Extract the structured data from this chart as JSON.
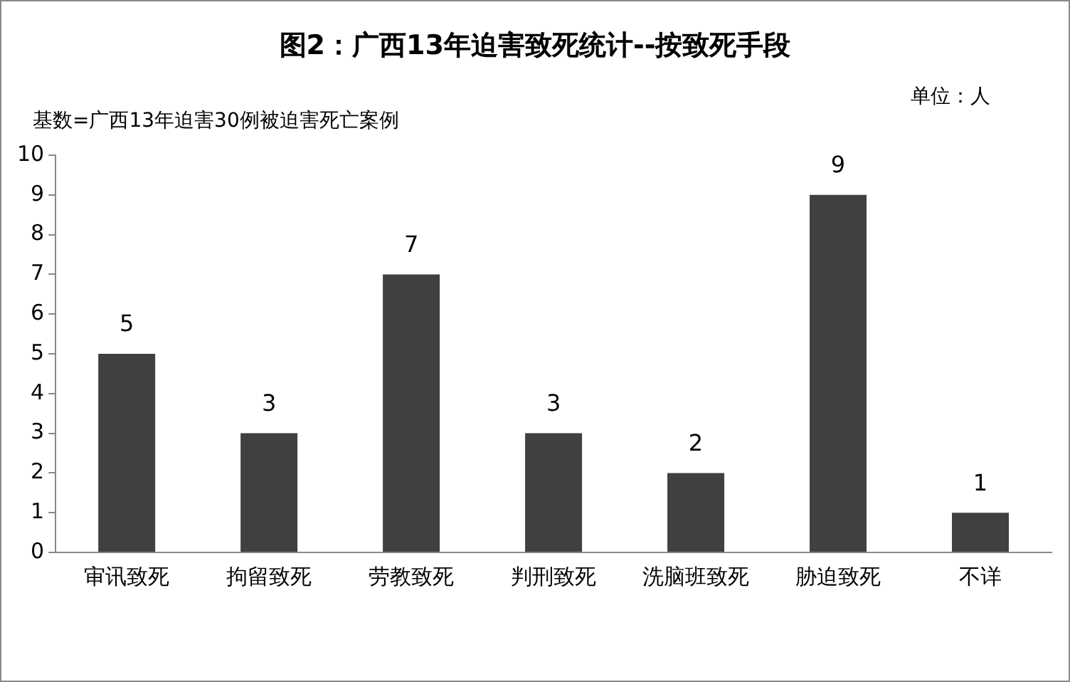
{
  "chart_data": {
    "type": "bar",
    "title": "图2：广西13年迫害致死统计--按致死手段",
    "categories": [
      "审讯致死",
      "拘留致死",
      "劳教致死",
      "判刑致死",
      "洗脑班致死",
      "胁迫致死",
      "不详"
    ],
    "values": [
      5,
      3,
      7,
      3,
      2,
      9,
      1
    ],
    "color": "#404040",
    "ylim": [
      0,
      10
    ],
    "yticks": [
      0,
      1,
      2,
      3,
      4,
      5,
      6,
      7,
      8,
      9,
      10
    ],
    "grid": false,
    "data_labels": true,
    "annotations": [
      "单位：人",
      "基数=广西13年迫害30例被迫害死亡案例"
    ]
  }
}
